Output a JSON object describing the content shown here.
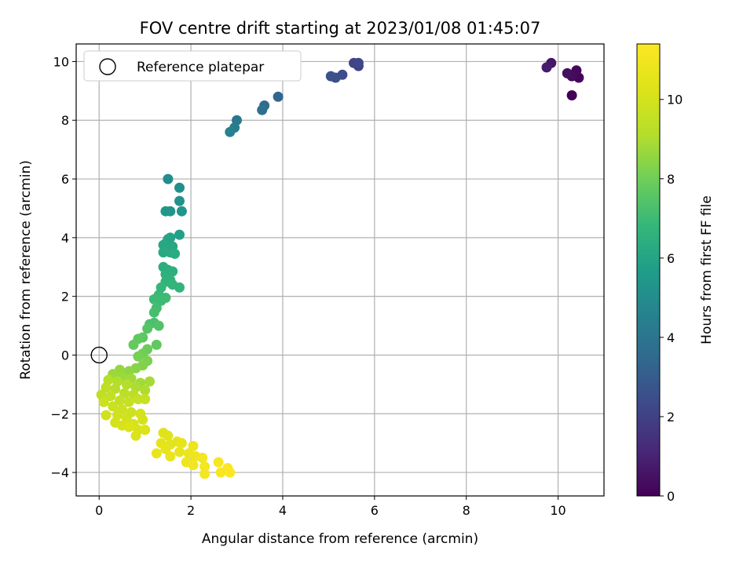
{
  "chart_data": {
    "type": "scatter",
    "title": "FOV centre drift starting at 2023/01/08 01:45:07",
    "xlabel": "Angular distance from reference (arcmin)",
    "ylabel": "Rotation from reference (arcmin)",
    "xlim": [
      -0.5,
      11.0
    ],
    "ylim": [
      -4.8,
      10.6
    ],
    "xticks": [
      0,
      2,
      4,
      6,
      8,
      10
    ],
    "yticks": [
      -4,
      -2,
      0,
      2,
      4,
      6,
      8,
      10
    ],
    "grid": true,
    "legend": {
      "position": "top-left",
      "entries": [
        "Reference platepar"
      ]
    },
    "reference_point": {
      "x": 0,
      "y": 0,
      "label": "Reference platepar"
    },
    "colorbar": {
      "label": "Hours from first FF file",
      "colormap": "viridis",
      "range": [
        0,
        11.4
      ],
      "ticks": [
        0,
        2,
        4,
        6,
        8,
        10
      ]
    },
    "series": [
      {
        "points": [
          [
            10.3,
            8.85,
            0.0
          ],
          [
            10.45,
            9.45,
            0.1
          ],
          [
            10.4,
            9.7,
            0.2
          ],
          [
            10.3,
            9.5,
            0.3
          ],
          [
            10.2,
            9.6,
            0.4
          ],
          [
            9.85,
            9.95,
            0.6
          ],
          [
            9.75,
            9.8,
            0.8
          ],
          [
            5.65,
            9.85,
            2.0
          ],
          [
            5.55,
            9.95,
            2.1
          ],
          [
            5.65,
            9.95,
            2.2
          ],
          [
            5.3,
            9.55,
            2.4
          ],
          [
            5.15,
            9.45,
            2.5
          ],
          [
            5.05,
            9.5,
            2.6
          ],
          [
            3.9,
            8.8,
            3.4
          ],
          [
            3.6,
            8.5,
            3.6
          ],
          [
            3.55,
            8.35,
            3.8
          ],
          [
            3.0,
            8.0,
            4.1
          ],
          [
            2.95,
            7.75,
            4.3
          ],
          [
            2.85,
            7.6,
            4.5
          ],
          [
            1.5,
            6.0,
            5.0
          ],
          [
            1.75,
            5.7,
            5.1
          ],
          [
            1.75,
            5.25,
            5.2
          ],
          [
            1.8,
            4.9,
            5.3
          ],
          [
            1.55,
            4.9,
            5.3
          ],
          [
            1.45,
            4.9,
            5.4
          ],
          [
            1.75,
            4.1,
            5.8
          ],
          [
            1.55,
            4.0,
            5.9
          ],
          [
            1.5,
            3.95,
            6.0
          ],
          [
            1.45,
            3.8,
            6.0
          ],
          [
            1.4,
            3.75,
            6.1
          ],
          [
            1.6,
            3.7,
            6.1
          ],
          [
            1.4,
            3.5,
            6.2
          ],
          [
            1.55,
            3.5,
            6.2
          ],
          [
            1.65,
            3.45,
            6.3
          ],
          [
            1.4,
            3.0,
            6.4
          ],
          [
            1.5,
            2.9,
            6.4
          ],
          [
            1.6,
            2.85,
            6.5
          ],
          [
            1.45,
            2.75,
            6.5
          ],
          [
            1.55,
            2.55,
            6.6
          ],
          [
            1.45,
            2.5,
            6.6
          ],
          [
            1.6,
            2.4,
            6.7
          ],
          [
            1.75,
            2.3,
            6.7
          ],
          [
            1.35,
            2.3,
            6.8
          ],
          [
            1.3,
            2.05,
            6.9
          ],
          [
            1.2,
            1.9,
            7.0
          ],
          [
            1.35,
            1.85,
            7.0
          ],
          [
            1.45,
            1.95,
            7.0
          ],
          [
            1.25,
            1.6,
            7.1
          ],
          [
            1.2,
            1.45,
            7.2
          ],
          [
            1.2,
            1.1,
            7.3
          ],
          [
            1.1,
            1.05,
            7.3
          ],
          [
            1.3,
            1.0,
            7.4
          ],
          [
            1.05,
            0.9,
            7.5
          ],
          [
            0.95,
            0.6,
            7.6
          ],
          [
            0.85,
            0.55,
            7.7
          ],
          [
            0.75,
            0.35,
            7.8
          ],
          [
            1.25,
            0.35,
            7.7
          ],
          [
            1.05,
            0.2,
            7.9
          ],
          [
            0.95,
            0.05,
            8.0
          ],
          [
            0.85,
            -0.05,
            8.1
          ],
          [
            1.05,
            -0.2,
            8.2
          ],
          [
            0.95,
            -0.35,
            8.3
          ],
          [
            0.8,
            -0.45,
            8.4
          ],
          [
            0.65,
            -0.55,
            8.5
          ],
          [
            0.45,
            -0.5,
            8.6
          ],
          [
            0.3,
            -0.65,
            8.7
          ],
          [
            0.5,
            -0.75,
            8.7
          ],
          [
            0.7,
            -0.8,
            8.8
          ],
          [
            0.9,
            -0.95,
            8.8
          ],
          [
            1.1,
            -0.9,
            8.9
          ],
          [
            1.0,
            -1.2,
            9.0
          ],
          [
            0.8,
            -1.1,
            9.0
          ],
          [
            0.6,
            -1.0,
            9.1
          ],
          [
            0.4,
            -0.9,
            9.1
          ],
          [
            0.2,
            -0.85,
            9.2
          ],
          [
            0.35,
            -1.15,
            9.2
          ],
          [
            0.55,
            -1.3,
            9.3
          ],
          [
            0.75,
            -1.35,
            9.3
          ],
          [
            0.15,
            -1.1,
            9.4
          ],
          [
            0.05,
            -1.35,
            9.4
          ],
          [
            0.25,
            -1.4,
            9.5
          ],
          [
            0.45,
            -1.55,
            9.5
          ],
          [
            0.65,
            -1.6,
            9.6
          ],
          [
            0.85,
            -1.5,
            9.6
          ],
          [
            1.0,
            -1.5,
            9.6
          ],
          [
            0.1,
            -1.6,
            9.7
          ],
          [
            0.3,
            -1.75,
            9.7
          ],
          [
            0.5,
            -1.85,
            9.8
          ],
          [
            0.7,
            -1.95,
            9.8
          ],
          [
            0.15,
            -2.05,
            9.9
          ],
          [
            0.4,
            -2.05,
            9.9
          ],
          [
            0.6,
            -2.15,
            9.9
          ],
          [
            0.9,
            -2.0,
            10.0
          ],
          [
            0.95,
            -2.2,
            10.0
          ],
          [
            0.35,
            -2.3,
            10.0
          ],
          [
            0.5,
            -2.4,
            10.1
          ],
          [
            0.75,
            -2.35,
            10.1
          ],
          [
            0.85,
            -2.55,
            10.1
          ],
          [
            0.65,
            -2.45,
            10.2
          ],
          [
            0.8,
            -2.75,
            10.2
          ],
          [
            1.0,
            -2.55,
            10.2
          ],
          [
            1.4,
            -2.65,
            10.4
          ],
          [
            1.5,
            -2.75,
            10.4
          ],
          [
            1.35,
            -3.0,
            10.5
          ],
          [
            1.55,
            -3.05,
            10.5
          ],
          [
            1.7,
            -2.95,
            10.5
          ],
          [
            1.8,
            -3.0,
            10.6
          ],
          [
            1.45,
            -3.2,
            10.6
          ],
          [
            1.25,
            -3.35,
            10.7
          ],
          [
            1.55,
            -3.45,
            10.7
          ],
          [
            1.75,
            -3.3,
            10.7
          ],
          [
            1.95,
            -3.35,
            10.8
          ],
          [
            2.05,
            -3.1,
            10.8
          ],
          [
            2.1,
            -3.45,
            10.9
          ],
          [
            1.9,
            -3.65,
            10.9
          ],
          [
            2.05,
            -3.75,
            11.0
          ],
          [
            2.25,
            -3.5,
            11.0
          ],
          [
            2.3,
            -3.8,
            11.1
          ],
          [
            2.3,
            -4.05,
            11.1
          ],
          [
            2.6,
            -3.65,
            11.2
          ],
          [
            2.65,
            -4.0,
            11.2
          ],
          [
            2.8,
            -3.85,
            11.3
          ],
          [
            2.85,
            -4.0,
            11.4
          ]
        ]
      }
    ]
  }
}
